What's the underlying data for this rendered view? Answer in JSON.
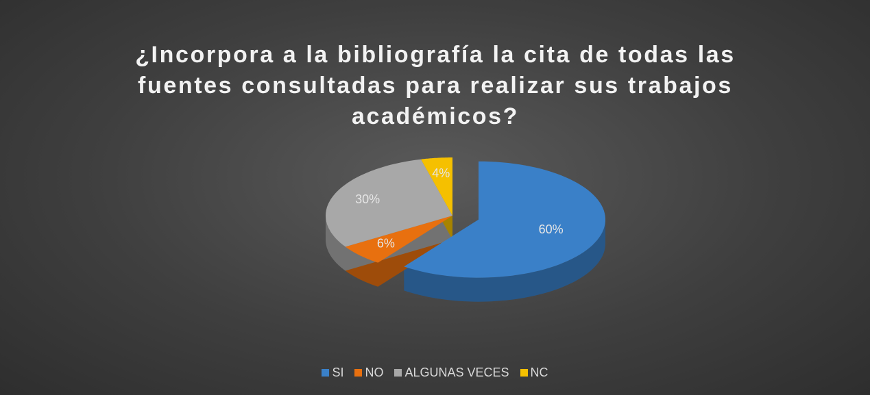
{
  "chart_data": {
    "type": "pie",
    "title": "¿Incorpora a la bibliografía la cita de todas las fuentes consultadas para realizar sus trabajos académicos?",
    "categories": [
      "SI",
      "NO",
      "ALGUNAS VECES",
      "NC"
    ],
    "values": [
      60,
      6,
      30,
      4
    ],
    "value_labels": [
      "60%",
      "6%",
      "30%",
      "4%"
    ],
    "colors": [
      "#3a80c8",
      "#e8700f",
      "#a8a8a8",
      "#f5c000"
    ],
    "exploded": "SI",
    "legend": "bottom"
  }
}
